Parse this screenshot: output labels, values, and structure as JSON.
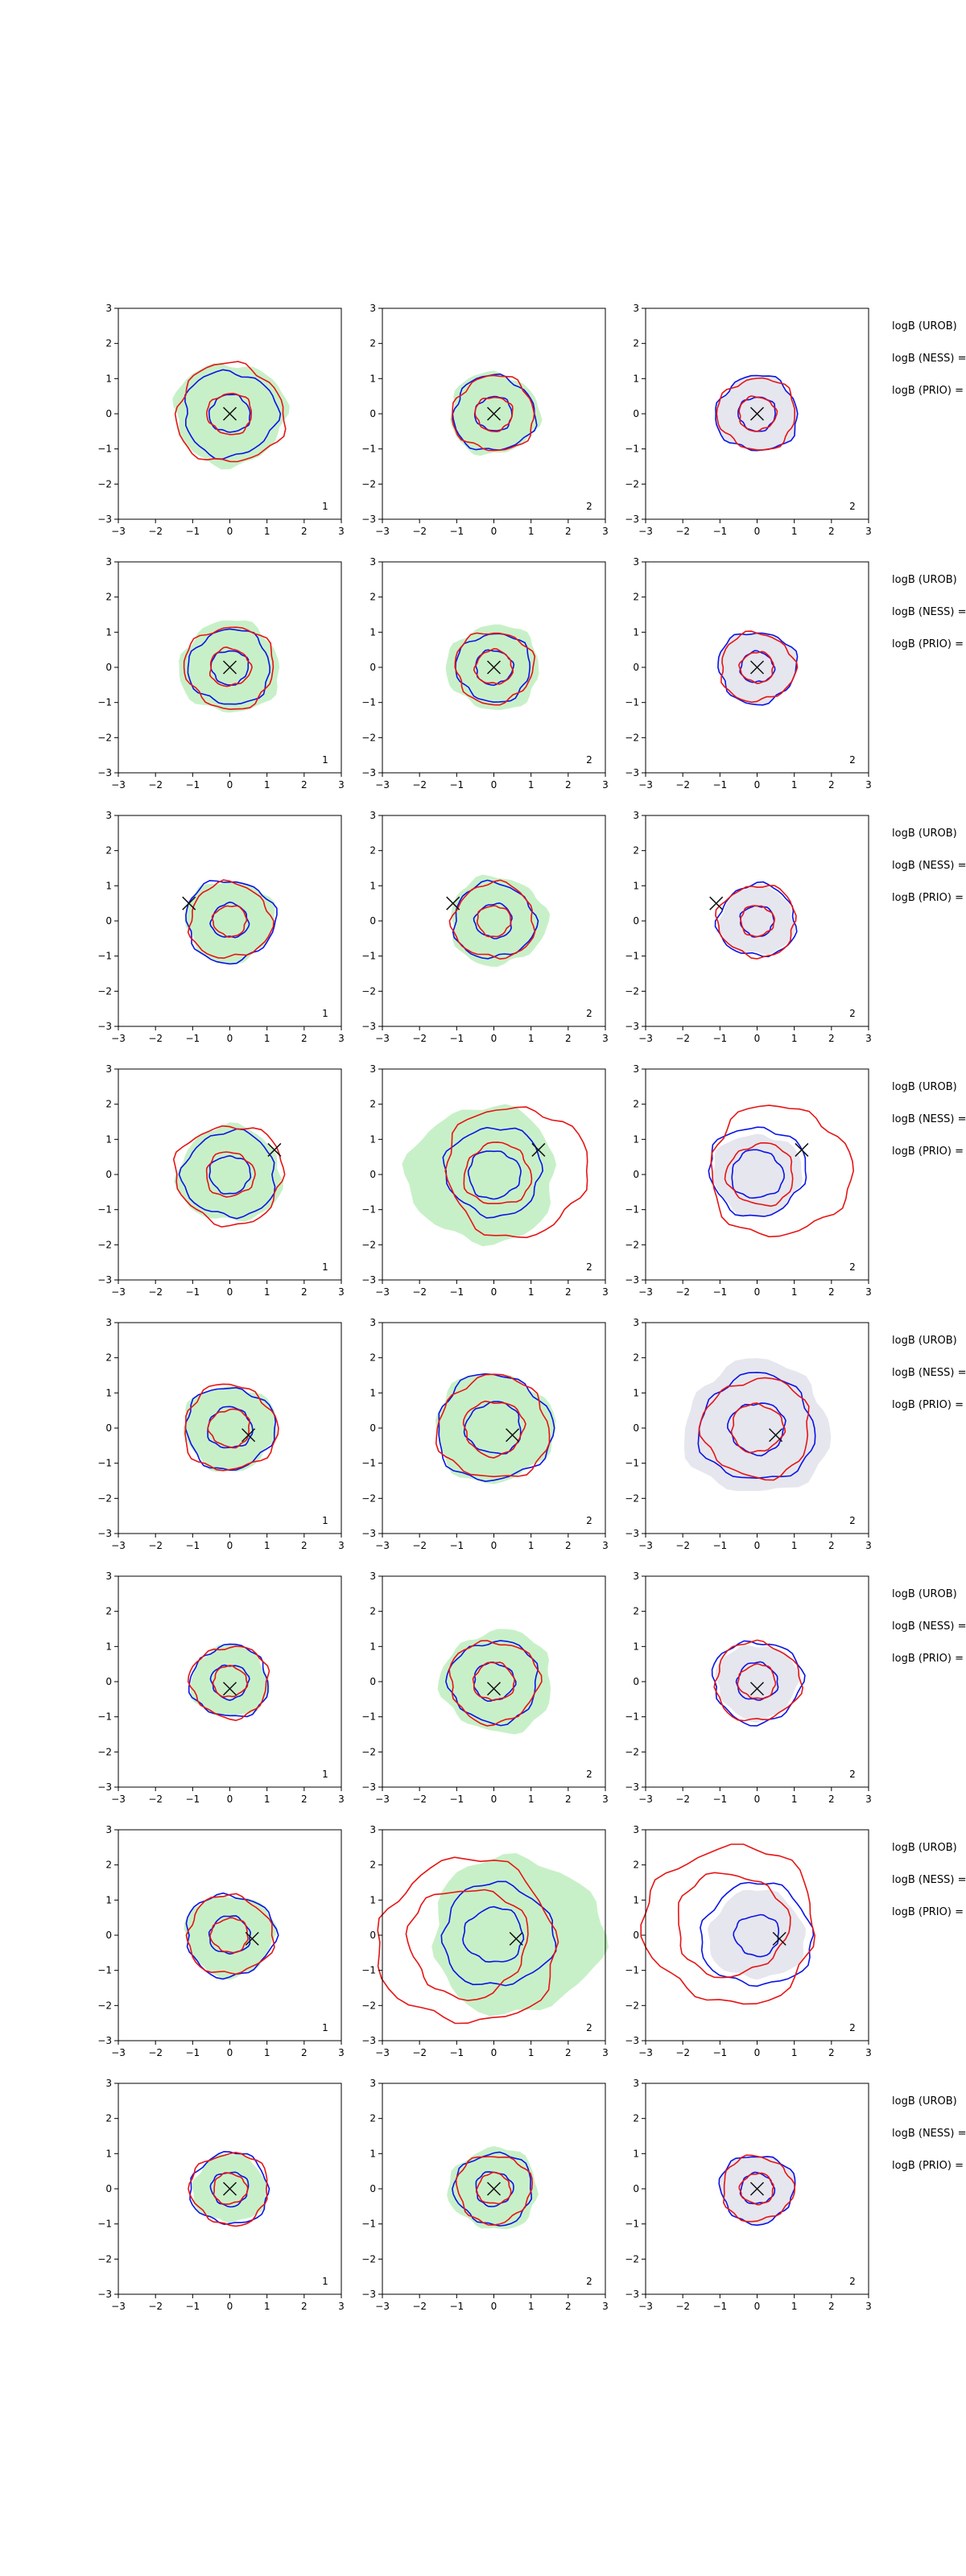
{
  "chart_data": {
    "type": "contour",
    "layout": {
      "rows": 8,
      "cols": 3
    },
    "axes": {
      "xlim": [
        -3,
        3
      ],
      "ylim": [
        -3,
        3
      ],
      "xticks": [
        -3,
        -2,
        -1,
        0,
        1,
        2,
        3
      ],
      "yticks": [
        -3,
        -2,
        -1,
        0,
        1,
        2,
        3
      ],
      "tick_labels": [
        "−3",
        "−2",
        "−1",
        "0",
        "1",
        "2",
        "3"
      ],
      "grid": false
    },
    "colors": {
      "blue_contour": "#0a14e6",
      "red_contour": "#e61414",
      "green_fill": "#c8f0c8",
      "grey_fill": "#e6e6ee",
      "marker": "#111111"
    },
    "row_labels": [
      "logB (UROB)",
      "logB (NESS) =",
      "logB (PRIO) ="
    ],
    "panel_numbers": [
      "1",
      "2",
      "2"
    ],
    "rows": [
      {
        "marker": [
          0,
          0
        ],
        "panels": [
          {
            "green": [
              [
                0,
                0,
                1.5
              ]
            ],
            "blue": [
              [
                0,
                0,
                1.25
              ],
              [
                0,
                0,
                0.55
              ]
            ],
            "red": [
              [
                0,
                0,
                1.45
              ],
              [
                0,
                0,
                0.6
              ]
            ]
          },
          {
            "green": [
              [
                0,
                0,
                1.2
              ]
            ],
            "blue": [
              [
                0,
                0,
                1.1
              ],
              [
                0,
                0,
                0.5
              ]
            ],
            "red": [
              [
                0,
                0,
                1.1
              ],
              [
                0,
                0,
                0.5
              ]
            ]
          },
          {
            "grey": [
              [
                0,
                0,
                1.1
              ]
            ],
            "blue": [
              [
                0,
                0,
                1.1
              ],
              [
                0,
                0,
                0.5
              ]
            ],
            "red": [
              [
                0,
                0,
                1.05
              ],
              [
                0,
                0,
                0.5
              ]
            ]
          }
        ]
      },
      {
        "marker": [
          0,
          0
        ],
        "panels": [
          {
            "green": [
              [
                0,
                0,
                1.35
              ]
            ],
            "blue": [
              [
                0,
                0,
                1.1
              ],
              [
                0,
                0,
                0.5
              ]
            ],
            "red": [
              [
                0,
                0,
                1.2
              ],
              [
                0,
                0,
                0.55
              ]
            ]
          },
          {
            "green": [
              [
                0,
                0,
                1.25
              ]
            ],
            "blue": [
              [
                0,
                0,
                1.0
              ],
              [
                0,
                0,
                0.5
              ]
            ],
            "red": [
              [
                0,
                0,
                1.05
              ],
              [
                0,
                0,
                0.5
              ]
            ]
          },
          {
            "grey": [
              [
                0,
                0,
                1.05
              ]
            ],
            "blue": [
              [
                0,
                0,
                1.05
              ],
              [
                0,
                0,
                0.45
              ]
            ],
            "red": [
              [
                0,
                0,
                1.0
              ],
              [
                0,
                0,
                0.45
              ]
            ]
          }
        ]
      },
      {
        "marker": [
          -1.1,
          0.5
        ],
        "panels": [
          {
            "green": [
              [
                0,
                0,
                1.2
              ]
            ],
            "blue": [
              [
                0,
                0,
                1.2
              ],
              [
                0,
                0,
                0.5
              ]
            ],
            "red": [
              [
                0,
                0,
                1.1
              ],
              [
                0,
                0,
                0.45
              ]
            ]
          },
          {
            "green": [
              [
                0.1,
                0,
                1.3
              ]
            ],
            "blue": [
              [
                0,
                0,
                1.1
              ],
              [
                0,
                0,
                0.5
              ]
            ],
            "red": [
              [
                0,
                0,
                1.1
              ],
              [
                0,
                0,
                0.45
              ]
            ]
          },
          {
            "grey": [
              [
                0,
                0,
                1.0
              ]
            ],
            "blue": [
              [
                0,
                0,
                1.05
              ],
              [
                0,
                0,
                0.45
              ]
            ],
            "red": [
              [
                0,
                0,
                1.05
              ],
              [
                0,
                0,
                0.45
              ]
            ]
          }
        ]
      },
      {
        "marker": [
          1.2,
          0.7
        ],
        "panels": [
          {
            "green": [
              [
                0,
                0,
                1.4
              ]
            ],
            "blue": [
              [
                0,
                0,
                1.25
              ],
              [
                0,
                0,
                0.55
              ]
            ],
            "red": [
              [
                0,
                0,
                1.45
              ],
              [
                0,
                0,
                0.65
              ]
            ]
          },
          {
            "green": [
              [
                -0.3,
                0,
                2.0
              ]
            ],
            "blue": [
              [
                0,
                0.1,
                1.3
              ],
              [
                0,
                0,
                0.7
              ]
            ],
            "red": [
              [
                0.6,
                0.1,
                1.9
              ],
              [
                0.1,
                0,
                0.9
              ]
            ]
          },
          {
            "grey": [
              [
                0,
                0,
                1.2
              ]
            ],
            "blue": [
              [
                0,
                0.1,
                1.3
              ],
              [
                0,
                0,
                0.7
              ]
            ],
            "red": [
              [
                0.6,
                0.1,
                1.9
              ],
              [
                0.1,
                0,
                0.9
              ]
            ]
          }
        ]
      },
      {
        "marker": [
          0.5,
          -0.2
        ],
        "panels": [
          {
            "green": [
              [
                0,
                0,
                1.25
              ]
            ],
            "blue": [
              [
                0,
                0,
                1.2
              ],
              [
                0,
                0,
                0.6
              ]
            ],
            "red": [
              [
                0,
                0,
                1.25
              ],
              [
                0,
                0,
                0.55
              ]
            ]
          },
          {
            "green": [
              [
                0,
                0,
                1.6
              ]
            ],
            "blue": [
              [
                0,
                0,
                1.55
              ],
              [
                0,
                0,
                0.75
              ]
            ],
            "red": [
              [
                0,
                0,
                1.5
              ],
              [
                0,
                0,
                0.8
              ]
            ]
          },
          {
            "grey": [
              [
                0,
                0,
                1.95
              ]
            ],
            "blue": [
              [
                0,
                0,
                1.55
              ],
              [
                0,
                0,
                0.75
              ]
            ],
            "red": [
              [
                0,
                0,
                1.45
              ],
              [
                0,
                0,
                0.7
              ]
            ]
          }
        ]
      },
      {
        "marker": [
          0,
          -0.2
        ],
        "panels": [
          {
            "green": [
              [
                0,
                0,
                1.05
              ]
            ],
            "blue": [
              [
                0,
                0,
                1.05
              ],
              [
                0,
                0,
                0.5
              ]
            ],
            "red": [
              [
                0,
                0,
                1.05
              ],
              [
                0,
                0,
                0.45
              ]
            ]
          },
          {
            "green": [
              [
                0.1,
                0,
                1.5
              ]
            ],
            "blue": [
              [
                0,
                0,
                1.2
              ],
              [
                0,
                0,
                0.55
              ]
            ],
            "red": [
              [
                0,
                0,
                1.2
              ],
              [
                0,
                0,
                0.55
              ]
            ]
          },
          {
            "grey": [
              [
                0,
                0,
                1.1
              ]
            ],
            "blue": [
              [
                0,
                0,
                1.2
              ],
              [
                0,
                0,
                0.55
              ]
            ],
            "red": [
              [
                0,
                0,
                1.15
              ],
              [
                0,
                0,
                0.5
              ]
            ]
          }
        ]
      },
      {
        "marker": [
          0.6,
          -0.1
        ],
        "panels": [
          {
            "green": [
              [
                0,
                0,
                1.2
              ]
            ],
            "blue": [
              [
                0,
                0,
                1.2
              ],
              [
                0,
                0,
                0.55
              ]
            ],
            "red": [
              [
                0,
                0,
                1.15
              ],
              [
                0,
                0,
                0.5
              ]
            ]
          },
          {
            "green": [
              [
                0.6,
                0,
                2.3
              ]
            ],
            "blue": [
              [
                0.1,
                0,
                1.5
              ],
              [
                0,
                0,
                0.8
              ]
            ],
            "red": [
              [
                -0.7,
                -0.2,
                2.4
              ],
              [
                -0.7,
                -0.2,
                1.6
              ]
            ]
          },
          {
            "grey": [
              [
                0,
                0,
                1.3
              ]
            ],
            "blue": [
              [
                0,
                0,
                1.5
              ],
              [
                0,
                0,
                0.6
              ]
            ],
            "red": [
              [
                -0.7,
                0.3,
                2.3
              ],
              [
                -0.7,
                0.3,
                1.5
              ]
            ]
          }
        ]
      },
      {
        "marker": [
          0,
          0
        ],
        "panels": [
          {
            "green": [
              [
                0,
                0,
                1.0
              ]
            ],
            "blue": [
              [
                0,
                0,
                1.05
              ],
              [
                0,
                0,
                0.5
              ]
            ],
            "red": [
              [
                0,
                0,
                1.05
              ],
              [
                0,
                0,
                0.45
              ]
            ]
          },
          {
            "green": [
              [
                0,
                0,
                1.2
              ]
            ],
            "blue": [
              [
                0,
                0,
                1.05
              ],
              [
                0,
                0,
                0.5
              ]
            ],
            "red": [
              [
                0,
                0,
                1.0
              ],
              [
                0,
                0,
                0.45
              ]
            ]
          },
          {
            "grey": [
              [
                0,
                0,
                1.0
              ]
            ],
            "blue": [
              [
                0,
                0,
                1.0
              ],
              [
                0,
                0,
                0.45
              ]
            ],
            "red": [
              [
                0,
                0,
                0.95
              ],
              [
                0,
                0,
                0.45
              ]
            ]
          }
        ]
      }
    ]
  }
}
